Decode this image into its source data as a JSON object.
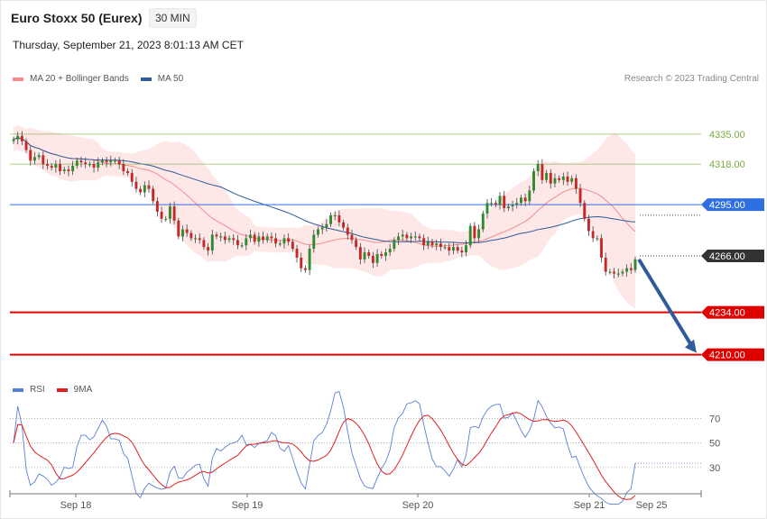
{
  "header": {
    "title": "Euro Stoxx 50 (Eurex)",
    "timeframe": "30 MIN",
    "timestamp": "Thursday, September 21, 2023 8:01:13 AM CET",
    "credit": "Research © 2023 Trading Central"
  },
  "legend_price": [
    {
      "label": "MA 20 + Bollinger Bands",
      "color": "#f28c8c"
    },
    {
      "label": "MA 50",
      "color": "#2f5b9a"
    }
  ],
  "legend_rsi": [
    {
      "label": "RSI",
      "color": "#5b7fd6"
    },
    {
      "label": "9MA",
      "color": "#e02020"
    }
  ],
  "chart_data": [
    {
      "type": "candlestick",
      "ylim": [
        4196,
        4362
      ],
      "x_labels": [
        "Sep 18",
        "Sep 19",
        "Sep 20",
        "Sep 21",
        "Sep 25"
      ],
      "levels": [
        {
          "value": 4335.0,
          "label": "4335.00",
          "color": "#7aab3e",
          "style": "thin"
        },
        {
          "value": 4318.0,
          "label": "4318.00",
          "color": "#7aab3e",
          "style": "thin"
        },
        {
          "value": 4295.0,
          "label": "4295.00",
          "color": "#2f6fe4",
          "style": "tag"
        },
        {
          "value": 4266.0,
          "label": "4266.00",
          "color": "#333333",
          "style": "tag"
        },
        {
          "value": 4234.0,
          "label": "4234.00",
          "color": "#e00000",
          "style": "tag"
        },
        {
          "value": 4210.0,
          "label": "4210.00",
          "color": "#e00000",
          "style": "tag"
        }
      ],
      "close": [
        4332,
        4334,
        4331,
        4326,
        4320,
        4322,
        4323,
        4318,
        4317,
        4316,
        4318,
        4314,
        4315,
        4314,
        4317,
        4320,
        4319,
        4318,
        4318,
        4316,
        4319,
        4320,
        4319,
        4320,
        4320,
        4318,
        4314,
        4313,
        4308,
        4304,
        4302,
        4306,
        4304,
        4297,
        4291,
        4287,
        4287,
        4294,
        4286,
        4277,
        4281,
        4279,
        4276,
        4276,
        4275,
        4271,
        4269,
        4278,
        4277,
        4277,
        4275,
        4276,
        4275,
        4272,
        4272,
        4276,
        4278,
        4274,
        4277,
        4275,
        4277,
        4276,
        4273,
        4273,
        4276,
        4274,
        4270,
        4265,
        4259,
        4258,
        4270,
        4278,
        4281,
        4282,
        4284,
        4289,
        4289,
        4285,
        4282,
        4278,
        4275,
        4271,
        4264,
        4268,
        4266,
        4262,
        4267,
        4266,
        4268,
        4270,
        4275,
        4277,
        4278,
        4276,
        4277,
        4277,
        4276,
        4272,
        4274,
        4272,
        4273,
        4271,
        4271,
        4269,
        4271,
        4269,
        4268,
        4272,
        4283,
        4276,
        4281,
        4290,
        4296,
        4296,
        4295,
        4300,
        4293,
        4294,
        4295,
        4296,
        4299,
        4297,
        4303,
        4314,
        4318,
        4309,
        4313,
        4307,
        4310,
        4309,
        4311,
        4308,
        4310,
        4304,
        4296,
        4287,
        4280,
        4276,
        4276,
        4265,
        4257,
        4257,
        4256,
        4256,
        4257,
        4259,
        4258,
        4264
      ]
    },
    {
      "type": "line",
      "title": "RSI",
      "ylim": [
        10,
        85
      ],
      "yticks": [
        30,
        50,
        70
      ],
      "series": [
        {
          "name": "RSI",
          "color": "#5b7fd6"
        },
        {
          "name": "9MA",
          "color": "#e02020"
        }
      ]
    }
  ]
}
